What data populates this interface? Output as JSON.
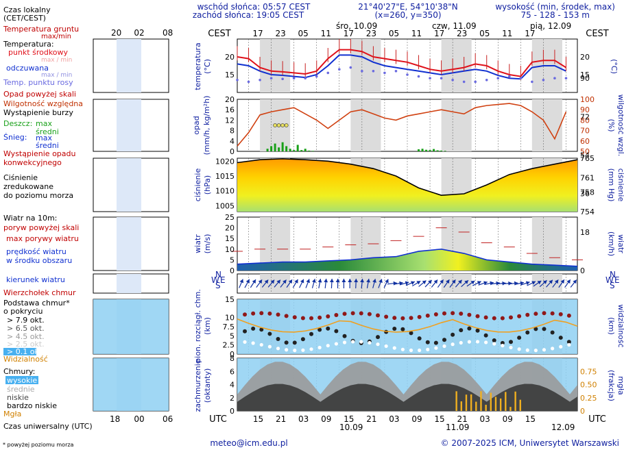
{
  "header": {
    "sunrise": "wschód słońca: 05:57 CEST",
    "sunset": "zachód słońca: 19:05 CEST",
    "coords": "21°40'27\"E, 54°10'38\"N",
    "grid_pos": "(x=260,  y=350)",
    "altitude_label": "wysokość (min, środek, max)",
    "altitude_values": "75 - 128 - 153 m"
  },
  "legend": {
    "local_time": "Czas lokalny",
    "local_time_zone": "(CET/CEST)",
    "ground_temp": "Temperatura gruntu",
    "ground_temp_sub": "max/min",
    "temperature": "Temperatura:",
    "mid_point": "punkt środkowy",
    "max_min": "max / min",
    "perceived": "odczuwana",
    "perceived_sub": "max / min",
    "dew_point": "Temp. punktu rosy",
    "precip_above": "Opad powyżej skali",
    "humidity": "Wilgotność względna",
    "storm": "Wystąpienie burzy",
    "rain": "Deszcz:",
    "rain_max": "max",
    "rain_mid": "średni",
    "snow": "Śnieg:",
    "snow_max": "max",
    "snow_mid": "średni",
    "convective": "Wystąpienie opadu",
    "convective2": "konwekcyjnego",
    "pressure": "Ciśnienie",
    "pressure2": "zredukowane",
    "pressure3": "do poziomu morza",
    "wind_at": "Wiatr na 10m:",
    "gust_above": "poryw powyżej skali",
    "gust_max": "max porywy wiatru",
    "wind_speed": "prędkość wiatru",
    "wind_speed2": "w środku obszaru",
    "wind_dir": "kierunek wiatru",
    "cloud_top": "Wierzchołek chmur",
    "cloud_base": "Podstawa chmur*",
    "cloud_base2": "o pokryciu",
    "okt1": "> 7.9 okt.",
    "okt2": "> 6.5 okt.",
    "okt3": "> 4.5 okt.",
    "okt4": "> 2.5 okt.",
    "okt5": "> 0.1 okt.",
    "visibility": "Widzialność",
    "clouds": "Chmury:",
    "high": "wysokie",
    "mid": "średnie",
    "low": "niskie",
    "very_low": "bardzo niskie",
    "fog": "Mgła",
    "utc_label": "Czas uniwersalny (UTC)",
    "footnote": "* powyżej poziomu morza",
    "local_hours": [
      "20",
      "02",
      "08"
    ],
    "utc_hours": [
      "18",
      "00",
      "06"
    ]
  },
  "axes": {
    "cest": "CEST",
    "utc": "UTC",
    "top_hours": [
      "17",
      "23",
      "05",
      "11",
      "17",
      "23",
      "05",
      "11",
      "17",
      "23",
      "05",
      "11",
      "17"
    ],
    "bottom_hours": [
      "15",
      "21",
      "03",
      "09",
      "15",
      "21",
      "03",
      "09",
      "15",
      "21",
      "03",
      "09",
      "15"
    ],
    "days_top": [
      "śro, 10.09",
      "czw, 11.09",
      "pią, 12.09"
    ],
    "days_bottom": [
      "10.09",
      "11.09",
      "12.09"
    ],
    "temp_label": "temperatura",
    "temp_unit": "(°C)",
    "precip_label": "opad",
    "precip_unit": "(mm/h, kg/m²h)",
    "humidity_label": "wilgotność wzgl.",
    "humidity_unit": "(%)",
    "pressure_label": "ciśnienie",
    "pressure_unit": "(hPa)",
    "pressure_unit_r": "(mm Hg)",
    "wind_label": "wiatr",
    "wind_unit": "(m/s)",
    "wind_unit_r": "(km/h)",
    "cloud_label": "pion. rozciągł. chm.",
    "cloud_unit": "(km)",
    "vis_label": "widzialność",
    "vis_unit": "(km)",
    "cover_label": "zachmurzenie",
    "cover_unit": "(oktanty)",
    "fog_label": "mgła",
    "fog_unit": "(frakcja)",
    "compass": [
      "N",
      "W",
      "S",
      "E"
    ]
  },
  "footer": {
    "email": "meteo@icm.edu.pl",
    "copyright": "© 2007-2025 ICM, Uniwersytet Warszawski"
  },
  "colors": {
    "temp": "#e0101a",
    "perceived": "#1030d0",
    "dew": "#6a6ae0",
    "humidity": "#d04010",
    "rain": "#18a018",
    "pressure_line": "#000000",
    "shade": "#d9d9d9",
    "sky": "#8fd0f2"
  },
  "chart_data": [
    {
      "type": "line",
      "title": "temperatura",
      "ylabel": "(°C)",
      "ylim": [
        10,
        25
      ],
      "x_hours": [
        0,
        3,
        6,
        9,
        12,
        15,
        18,
        21,
        24,
        27,
        30,
        33,
        36,
        39,
        42,
        45,
        48,
        51,
        54,
        57,
        60,
        63,
        66,
        69,
        72,
        75,
        78,
        81,
        84,
        87
      ],
      "series": [
        {
          "name": "temperatura",
          "values": [
            20,
            19.5,
            17,
            16,
            15.8,
            15.5,
            15.2,
            16,
            19.5,
            22,
            22,
            21.5,
            20,
            19.5,
            19,
            18.5,
            17.5,
            16.5,
            16,
            16.5,
            17,
            18,
            17.5,
            16,
            15,
            14.5,
            18.5,
            19,
            19,
            17
          ]
        },
        {
          "name": "odczuwana",
          "values": [
            18,
            17.5,
            16,
            15,
            14.8,
            14.5,
            14.2,
            15,
            17.5,
            20.5,
            20.5,
            20,
            18.5,
            17.5,
            17,
            16.5,
            16,
            15.5,
            15,
            15.5,
            16,
            16.5,
            16,
            14.8,
            14,
            13.8,
            17,
            17.5,
            17.5,
            16
          ]
        },
        {
          "name": "punkt rosy",
          "values": [
            13.5,
            13,
            13.5,
            14,
            13.8,
            14,
            14,
            14.5,
            15.5,
            16.5,
            17,
            16,
            16,
            15.5,
            16,
            15,
            14.5,
            14,
            14,
            13.5,
            13,
            13,
            13.5,
            14,
            14.5,
            14,
            13,
            13.5,
            14,
            14
          ]
        }
      ]
    },
    {
      "type": "line",
      "title": "wilgotność wzgl.",
      "ylabel": "(%)",
      "ylim": [
        50,
        100
      ],
      "x_hours": [
        0,
        3,
        6,
        9,
        12,
        15,
        18,
        21,
        24,
        27,
        30,
        33,
        36,
        39,
        42,
        45,
        48,
        51,
        54,
        57,
        60,
        63,
        66,
        69,
        72,
        75,
        78,
        81,
        84,
        87
      ],
      "values": [
        55,
        68,
        85,
        88,
        90,
        92,
        86,
        80,
        72,
        80,
        88,
        90,
        86,
        82,
        80,
        84,
        86,
        88,
        90,
        88,
        86,
        92,
        94,
        95,
        96,
        94,
        88,
        80,
        62,
        88
      ]
    },
    {
      "type": "bar",
      "title": "opad",
      "ylabel": "(mm/h)",
      "ylim": [
        0,
        20
      ],
      "x_hours": [
        8,
        9,
        10,
        11,
        12,
        13,
        14,
        15,
        16,
        17,
        18,
        19,
        20,
        48,
        49,
        50,
        51,
        52,
        53,
        54,
        55
      ],
      "values": [
        1,
        2,
        3,
        1.5,
        3.5,
        2,
        1,
        0.5,
        2.5,
        0.5,
        1,
        0.3,
        0.2,
        0.8,
        1,
        0.6,
        0.5,
        0.9,
        0.4,
        0.3,
        0.2
      ]
    },
    {
      "type": "area",
      "title": "ciśnienie",
      "ylabel": "(hPa)",
      "ylim": [
        1003,
        1021
      ],
      "x_hours": [
        0,
        6,
        12,
        18,
        24,
        30,
        36,
        42,
        48,
        54,
        60,
        66,
        72,
        78,
        84,
        90
      ],
      "values": [
        1019.5,
        1020.5,
        1020.8,
        1020.5,
        1020,
        1019,
        1017.5,
        1015,
        1011,
        1008.5,
        1009,
        1012,
        1015.5,
        1017.5,
        1019,
        1020.5
      ]
    },
    {
      "type": "area",
      "title": "wiatr",
      "ylabel": "(m/s)",
      "ylim": [
        0,
        25
      ],
      "x_hours": [
        0,
        6,
        12,
        18,
        24,
        30,
        36,
        42,
        48,
        54,
        60,
        66,
        72,
        78,
        84,
        90
      ],
      "series": [
        {
          "name": "prędkość",
          "values": [
            3,
            3.5,
            4,
            4,
            4.5,
            5,
            6,
            6.5,
            9,
            10,
            8,
            5,
            4,
            3,
            2.5,
            2
          ]
        },
        {
          "name": "porywy",
          "values": [
            9,
            10,
            10,
            10,
            11,
            12,
            12.5,
            14,
            16,
            20,
            18,
            13,
            11,
            8,
            6,
            5
          ]
        }
      ]
    }
  ]
}
